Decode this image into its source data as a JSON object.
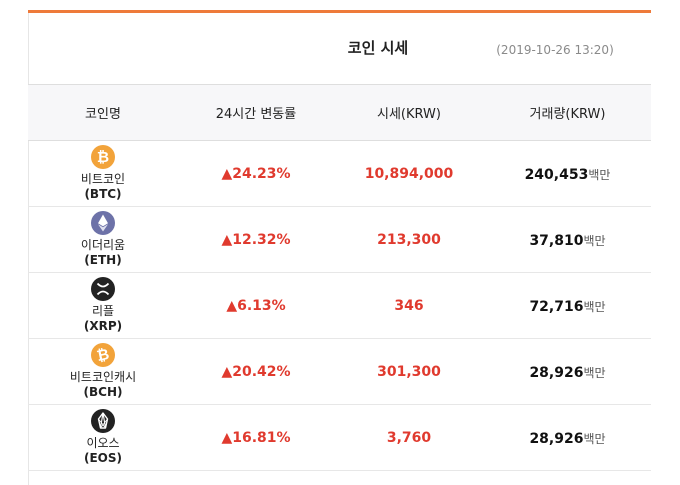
{
  "header": {
    "title": "코인 시세",
    "timestamp": "(2019-10-26 13:20)"
  },
  "table": {
    "columns": [
      "코인명",
      "24시간 변동률",
      "시세(KRW)",
      "거래량(KRW)"
    ],
    "volume_unit": "백만",
    "rows": [
      {
        "name": "비트코인",
        "symbol": "(BTC)",
        "icon": "bitcoin-icon",
        "change": "▲24.23%",
        "price": "10,894,000",
        "volume": "240,453",
        "unit": "백만"
      },
      {
        "name": "이더리움",
        "symbol": "(ETH)",
        "icon": "ethereum-icon",
        "change": "▲12.32%",
        "price": "213,300",
        "volume": "37,810",
        "unit": "백만"
      },
      {
        "name": "리플",
        "symbol": "(XRP)",
        "icon": "ripple-icon",
        "change": "▲6.13%",
        "price": "346",
        "volume": "72,716",
        "unit": "백만"
      },
      {
        "name": "비트코인캐시",
        "symbol": "(BCH)",
        "icon": "bitcoin-cash-icon",
        "change": "▲20.42%",
        "price": "301,300",
        "volume": "28,926",
        "unit": "백만"
      },
      {
        "name": "이오스",
        "symbol": "(EOS)",
        "icon": "eos-icon",
        "change": "▲16.81%",
        "price": "3,760",
        "volume": "28,926",
        "unit": "백만"
      }
    ]
  },
  "colors": {
    "accent": "#ee7a3a",
    "rise": "#e03a2e",
    "bitcoin": "#f2a33a",
    "ethereum": "#6d72a8",
    "ripple": "#222222",
    "eos": "#222222"
  }
}
